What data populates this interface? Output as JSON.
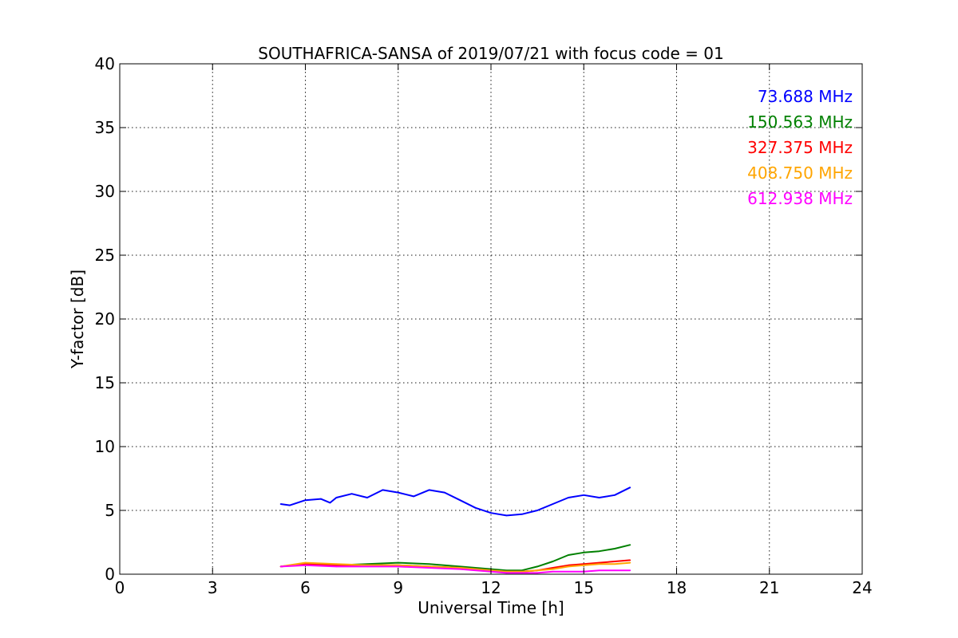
{
  "chart_data": {
    "type": "line",
    "title": "SOUTHAFRICA-SANSA of 2019/07/21 with focus code = 01",
    "xlabel": "Universal Time [h]",
    "ylabel": "Y-factor [dB]",
    "xlim": [
      0,
      24
    ],
    "ylim": [
      0,
      40
    ],
    "xticks": [
      0,
      3,
      6,
      9,
      12,
      15,
      18,
      21,
      24
    ],
    "yticks": [
      0,
      5,
      10,
      15,
      20,
      25,
      30,
      35,
      40
    ],
    "xtick_labels": [
      "0",
      "3",
      "6",
      "9",
      "12",
      "15",
      "18",
      "21",
      "24"
    ],
    "ytick_labels": [
      "0",
      "5",
      "10",
      "15",
      "20",
      "25",
      "30",
      "35",
      "40"
    ],
    "grid": true,
    "legend_position": "top-right",
    "series": [
      {
        "name": "73.688 MHz",
        "color": "#0000ff",
        "x": [
          5.2,
          5.5,
          6.0,
          6.5,
          6.8,
          7.0,
          7.5,
          8.0,
          8.5,
          9.0,
          9.5,
          10.0,
          10.5,
          11.0,
          11.5,
          12.0,
          12.5,
          13.0,
          13.5,
          14.0,
          14.5,
          15.0,
          15.5,
          16.0,
          16.5
        ],
        "y": [
          5.5,
          5.4,
          5.8,
          5.9,
          5.6,
          6.0,
          6.3,
          6.0,
          6.6,
          6.4,
          6.1,
          6.6,
          6.4,
          5.8,
          5.2,
          4.8,
          4.6,
          4.7,
          5.0,
          5.5,
          6.0,
          6.2,
          6.0,
          6.2,
          6.8
        ]
      },
      {
        "name": "150.563 MHz",
        "color": "#008000",
        "x": [
          5.2,
          6.0,
          7.0,
          8.0,
          9.0,
          10.0,
          11.0,
          12.0,
          12.5,
          13.0,
          13.5,
          14.0,
          14.5,
          15.0,
          15.5,
          16.0,
          16.5
        ],
        "y": [
          0.6,
          0.8,
          0.7,
          0.8,
          0.9,
          0.8,
          0.6,
          0.4,
          0.3,
          0.3,
          0.6,
          1.0,
          1.5,
          1.7,
          1.8,
          2.0,
          2.3
        ]
      },
      {
        "name": "327.375 MHz",
        "color": "#ff0000",
        "x": [
          5.2,
          6.0,
          7.0,
          8.0,
          9.0,
          10.0,
          11.0,
          12.0,
          12.5,
          13.0,
          13.5,
          14.0,
          14.5,
          15.0,
          15.5,
          16.0,
          16.5
        ],
        "y": [
          0.6,
          0.8,
          0.7,
          0.7,
          0.7,
          0.6,
          0.5,
          0.3,
          0.2,
          0.2,
          0.3,
          0.5,
          0.7,
          0.8,
          0.9,
          1.0,
          1.1
        ]
      },
      {
        "name": "408.750 MHz",
        "color": "#ffa500",
        "x": [
          5.2,
          6.0,
          7.0,
          8.0,
          9.0,
          10.0,
          11.0,
          12.0,
          12.5,
          13.0,
          13.5,
          14.0,
          14.5,
          15.0,
          15.5,
          16.0,
          16.5
        ],
        "y": [
          0.6,
          0.9,
          0.8,
          0.7,
          0.7,
          0.6,
          0.5,
          0.3,
          0.2,
          0.2,
          0.3,
          0.4,
          0.6,
          0.7,
          0.8,
          0.8,
          0.9
        ]
      },
      {
        "name": "612.938 MHz",
        "color": "#ff00ff",
        "x": [
          5.2,
          6.0,
          7.0,
          8.0,
          9.0,
          10.0,
          11.0,
          12.0,
          12.5,
          13.0,
          13.5,
          14.0,
          14.5,
          15.0,
          15.5,
          16.0,
          16.5
        ],
        "y": [
          0.6,
          0.7,
          0.6,
          0.6,
          0.6,
          0.5,
          0.4,
          0.2,
          0.1,
          0.1,
          0.1,
          0.2,
          0.2,
          0.2,
          0.3,
          0.3,
          0.3
        ]
      }
    ]
  }
}
